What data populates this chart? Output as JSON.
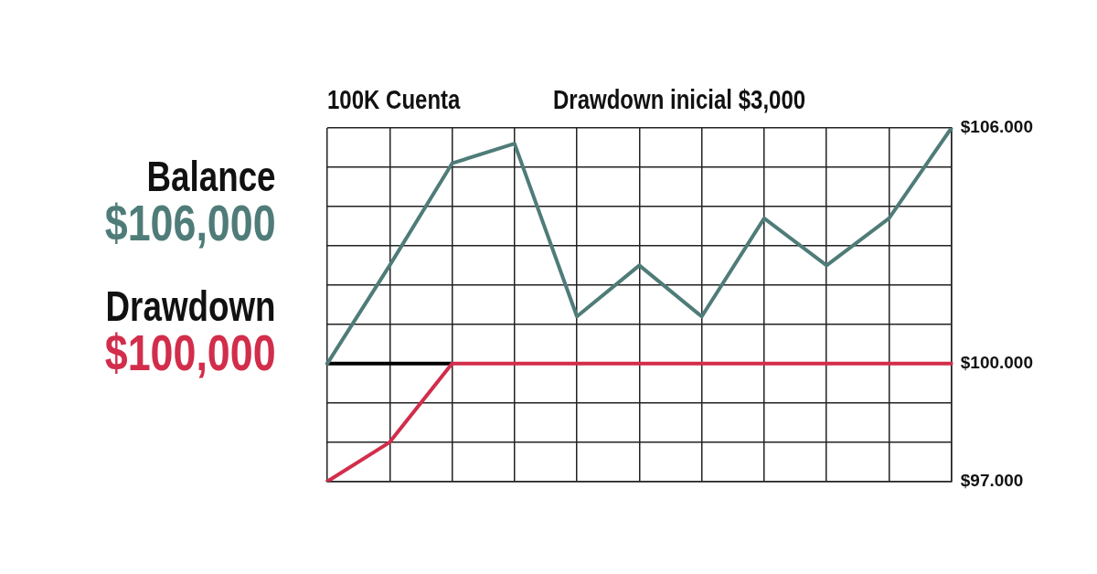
{
  "chart_data": {
    "type": "line",
    "categories": [
      null,
      null,
      null,
      null,
      null,
      null,
      null,
      null,
      null,
      null,
      null
    ],
    "series": [
      {
        "color": "#4f7c78",
        "values": [
          100000,
          102500,
          105100,
          105600,
          101200,
          102500,
          101200,
          103700,
          102500,
          103700,
          106000
        ]
      },
      {
        "color": "#d22d4b",
        "values": [
          97000,
          98000,
          100000,
          100000,
          100000,
          100000,
          100000,
          100000,
          100000,
          100000,
          100000
        ]
      },
      {
        "color": "#000000",
        "values": [
          100000,
          100000,
          100000,
          null,
          null,
          null,
          null,
          null,
          null,
          null,
          null
        ]
      }
    ],
    "ylim": [
      97000,
      106000
    ],
    "yticks": [
      {
        "value": 97000,
        "label": "$97.000"
      },
      {
        "value": 98000,
        "label": null
      },
      {
        "value": 99000,
        "label": null
      },
      {
        "value": 100000,
        "label": "$100.000"
      },
      {
        "value": 101000,
        "label": null
      },
      {
        "value": 102000,
        "label": null
      },
      {
        "value": 103000,
        "label": null
      },
      {
        "value": 104000,
        "label": null
      },
      {
        "value": 105000,
        "label": null
      },
      {
        "value": 106000,
        "label": "$106.000"
      }
    ],
    "grid": true,
    "marker": "none",
    "line_style": "solid",
    "annotations": [
      "100K Cuenta",
      "Drawdown inicial $3,000",
      "Balance",
      "$106,000",
      "Drawdown",
      "$100,000"
    ]
  }
}
